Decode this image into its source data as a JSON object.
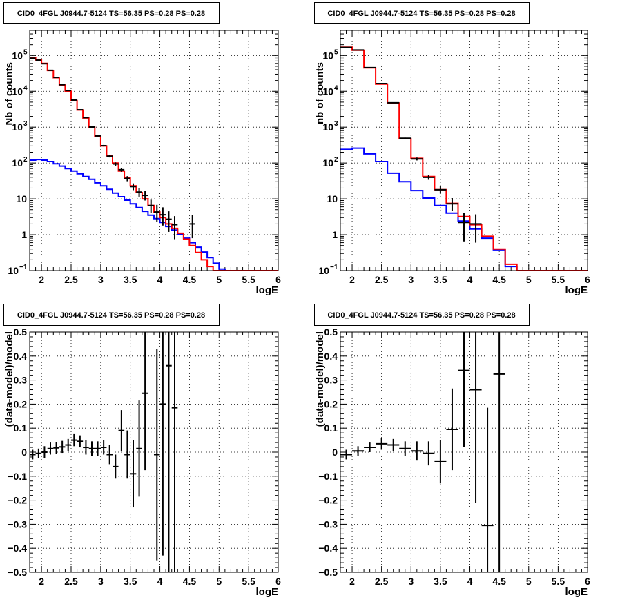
{
  "chart_data": [
    {
      "type": "histogram",
      "title": "CID0_4FGL J0944.7-5124 TS=56.35 PS=0.28 PS=0.28",
      "xlabel": "logE",
      "ylabel": "Nb of counts",
      "log_y": true,
      "grid": true,
      "xlim": [
        1.8,
        6.0
      ],
      "ylim": [
        0.1,
        500000
      ],
      "xticks": [
        2,
        2.5,
        3,
        3.5,
        4,
        4.5,
        5,
        5.5,
        6
      ],
      "xtick_labels": [
        "2",
        "2.5",
        "3",
        "3.5",
        "4",
        "4.5",
        "5",
        "5.5",
        "6"
      ],
      "yticks": [
        0.1,
        1,
        10,
        100,
        1000,
        10000,
        100000
      ],
      "ytick_labels": [
        "10^-1",
        "1",
        "10",
        "10^2",
        "10^3",
        "10^4",
        "10^5"
      ],
      "bin_width": 0.1,
      "bin_edges_start": 1.8,
      "model_total_color": "#ff0000",
      "model_source_color": "#0000ff",
      "data_color": "#000000",
      "model_total": [
        85000,
        75000,
        60000,
        38000,
        24000,
        15000,
        10000,
        5500,
        3000,
        1800,
        1000,
        560,
        300,
        160,
        100,
        60,
        38,
        23,
        15,
        10,
        6.5,
        4.3,
        3,
        2,
        1.5,
        1.1,
        0.75,
        0.5,
        0.32,
        0.2,
        0.13,
        0.1,
        0.1,
        0.1,
        0.1,
        0.1,
        0.1,
        0.1,
        0.1,
        0.1,
        0.1,
        0.1
      ],
      "model_source": [
        120,
        125,
        120,
        110,
        95,
        82,
        70,
        60,
        50,
        42,
        35,
        28,
        23,
        18.5,
        14.5,
        11.5,
        9.2,
        7.3,
        5.7,
        4.5,
        3.5,
        2.8,
        2.2,
        1.7,
        1.35,
        1.05,
        0.8,
        0.6,
        0.45,
        0.33,
        0.23,
        0.16,
        0.11,
        0.1,
        0.1,
        0.1,
        0.1,
        0.1,
        0.1,
        0.1,
        0.1,
        0.1
      ],
      "data_points": [
        {
          "x": 1.85,
          "y": 84000,
          "ylo": 83700,
          "yhi": 84300
        },
        {
          "x": 1.95,
          "y": 74000,
          "ylo": 73700,
          "yhi": 74300
        },
        {
          "x": 2.05,
          "y": 59000,
          "ylo": 58700,
          "yhi": 59300
        },
        {
          "x": 2.15,
          "y": 38500,
          "ylo": 38200,
          "yhi": 38800
        },
        {
          "x": 2.25,
          "y": 24500,
          "ylo": 24300,
          "yhi": 24700
        },
        {
          "x": 2.35,
          "y": 15300,
          "ylo": 15100,
          "yhi": 15500
        },
        {
          "x": 2.45,
          "y": 10500,
          "ylo": 10300,
          "yhi": 10700
        },
        {
          "x": 2.55,
          "y": 5700,
          "ylo": 5600,
          "yhi": 5800
        },
        {
          "x": 2.65,
          "y": 3050,
          "ylo": 2990,
          "yhi": 3110
        },
        {
          "x": 2.75,
          "y": 1850,
          "ylo": 1800,
          "yhi": 1900
        },
        {
          "x": 2.85,
          "y": 1010,
          "ylo": 980,
          "yhi": 1040
        },
        {
          "x": 2.95,
          "y": 570,
          "ylo": 550,
          "yhi": 590
        },
        {
          "x": 3.05,
          "y": 305,
          "ylo": 290,
          "yhi": 320
        },
        {
          "x": 3.15,
          "y": 155,
          "ylo": 143,
          "yhi": 167
        },
        {
          "x": 3.25,
          "y": 94,
          "ylo": 84,
          "yhi": 104
        },
        {
          "x": 3.35,
          "y": 65,
          "ylo": 57,
          "yhi": 73
        },
        {
          "x": 3.45,
          "y": 37,
          "ylo": 31,
          "yhi": 43
        },
        {
          "x": 3.55,
          "y": 22,
          "ylo": 17.5,
          "yhi": 27
        },
        {
          "x": 3.65,
          "y": 15.5,
          "ylo": 11.5,
          "yhi": 20
        },
        {
          "x": 3.75,
          "y": 12.5,
          "ylo": 9,
          "yhi": 16.5
        },
        {
          "x": 3.85,
          "y": 6.5,
          "ylo": 4,
          "yhi": 9.5
        },
        {
          "x": 3.95,
          "y": 4.3,
          "ylo": 2.3,
          "yhi": 6.8
        },
        {
          "x": 4.05,
          "y": 3.6,
          "ylo": 1.8,
          "yhi": 5.8
        },
        {
          "x": 4.15,
          "y": 2.7,
          "ylo": 1.2,
          "yhi": 4.5
        },
        {
          "x": 4.25,
          "y": 1.9,
          "ylo": 0.75,
          "yhi": 3.3
        },
        {
          "x": 4.55,
          "y": 2.0,
          "ylo": 0.8,
          "yhi": 3.5
        }
      ]
    },
    {
      "type": "histogram",
      "title": "CID0_4FGL J0944.7-5124 TS=56.35 PS=0.28 PS=0.28",
      "xlabel": "logE",
      "ylabel": "nb of counts",
      "log_y": true,
      "grid": true,
      "xlim": [
        1.8,
        6.0
      ],
      "ylim": [
        0.1,
        500000
      ],
      "xticks": [
        2,
        2.5,
        3,
        3.5,
        4,
        4.5,
        5,
        5.5,
        6
      ],
      "xtick_labels": [
        "2",
        "2.5",
        "3",
        "3.5",
        "4",
        "4.5",
        "5",
        "5.5",
        "6"
      ],
      "yticks": [
        0.1,
        1,
        10,
        100,
        1000,
        10000,
        100000
      ],
      "ytick_labels": [
        "10^-1",
        "1",
        "10",
        "10^2",
        "10^3",
        "10^4",
        "10^5"
      ],
      "bin_width": 0.2,
      "bin_edges_start": 1.8,
      "model_total_color": "#ff0000",
      "model_source_color": "#0000ff",
      "data_color": "#000000",
      "model_total": [
        170000,
        140000,
        45000,
        16000,
        4700,
        480,
        135,
        42,
        18,
        7.5,
        3.2,
        1.9,
        0.9,
        0.4,
        0.15,
        0.1,
        0.1,
        0.1,
        0.1,
        0.1,
        0.1
      ],
      "model_source": [
        240,
        260,
        180,
        110,
        52,
        30,
        17,
        10.5,
        6.5,
        4.0,
        2.4,
        1.45,
        0.8,
        0.38,
        0.13,
        0.1,
        0.1,
        0.1,
        0.1,
        0.1,
        0.1
      ],
      "data_points": [
        {
          "x": 1.9,
          "y": 168000,
          "ylo": 167500,
          "yhi": 168500
        },
        {
          "x": 2.1,
          "y": 142000,
          "ylo": 141500,
          "yhi": 142500
        },
        {
          "x": 2.3,
          "y": 46000,
          "ylo": 45700,
          "yhi": 46300
        },
        {
          "x": 2.5,
          "y": 16500,
          "ylo": 16300,
          "yhi": 16700
        },
        {
          "x": 2.7,
          "y": 4800,
          "ylo": 4700,
          "yhi": 4900
        },
        {
          "x": 2.9,
          "y": 490,
          "ylo": 470,
          "yhi": 510
        },
        {
          "x": 3.1,
          "y": 130,
          "ylo": 118,
          "yhi": 142
        },
        {
          "x": 3.3,
          "y": 40,
          "ylo": 34,
          "yhi": 46
        },
        {
          "x": 3.5,
          "y": 18,
          "ylo": 14,
          "yhi": 22.5
        },
        {
          "x": 3.7,
          "y": 7.3,
          "ylo": 4.7,
          "yhi": 10.5
        },
        {
          "x": 3.9,
          "y": 2.2,
          "ylo": 0.65,
          "yhi": 4
        },
        {
          "x": 4.1,
          "y": 2.0,
          "ylo": 0.6,
          "yhi": 3.7
        }
      ]
    },
    {
      "type": "scatter",
      "title": "CID0_4FGL J0944.7-5124 TS=56.35 PS=0.28 PS=0.28",
      "xlabel": "logE",
      "ylabel": "(data-model)/model",
      "grid": true,
      "xlim": [
        1.8,
        6.0
      ],
      "ylim": [
        -0.5,
        0.5
      ],
      "xticks": [
        2,
        2.5,
        3,
        3.5,
        4,
        4.5,
        5,
        5.5,
        6
      ],
      "xtick_labels": [
        "2",
        "2.5",
        "3",
        "3.5",
        "4",
        "4.5",
        "5",
        "5.5",
        "6"
      ],
      "yticks": [
        -0.5,
        -0.4,
        -0.3,
        -0.2,
        -0.1,
        0,
        0.1,
        0.2,
        0.3,
        0.4,
        0.5
      ],
      "ytick_labels": [
        "−0.5",
        "−0.4",
        "−0.3",
        "−0.2",
        "−0.1",
        "0",
        "0.1",
        "0.2",
        "0.3",
        "0.4",
        "0.5"
      ],
      "half_width": 0.05,
      "data_color": "#000000",
      "points": [
        {
          "x": 1.85,
          "y": -0.01,
          "err": 0.02
        },
        {
          "x": 1.95,
          "y": -0.005,
          "err": 0.02
        },
        {
          "x": 2.05,
          "y": 0.0,
          "err": 0.025
        },
        {
          "x": 2.15,
          "y": 0.015,
          "err": 0.025
        },
        {
          "x": 2.25,
          "y": 0.018,
          "err": 0.025
        },
        {
          "x": 2.35,
          "y": 0.022,
          "err": 0.025
        },
        {
          "x": 2.45,
          "y": 0.03,
          "err": 0.025
        },
        {
          "x": 2.55,
          "y": 0.05,
          "err": 0.025
        },
        {
          "x": 2.65,
          "y": 0.045,
          "err": 0.025
        },
        {
          "x": 2.75,
          "y": 0.02,
          "err": 0.03
        },
        {
          "x": 2.85,
          "y": 0.015,
          "err": 0.03
        },
        {
          "x": 2.95,
          "y": 0.015,
          "err": 0.03
        },
        {
          "x": 3.05,
          "y": 0.02,
          "err": 0.03
        },
        {
          "x": 3.15,
          "y": -0.01,
          "err": 0.04
        },
        {
          "x": 3.25,
          "y": -0.06,
          "err": 0.05
        },
        {
          "x": 3.35,
          "y": 0.09,
          "err": 0.085
        },
        {
          "x": 3.45,
          "y": -0.01,
          "err": 0.1
        },
        {
          "x": 3.55,
          "y": -0.09,
          "err": 0.14
        },
        {
          "x": 3.65,
          "y": 0.015,
          "err": 0.2
        },
        {
          "x": 3.75,
          "y": 0.245,
          "err": 0.32
        },
        {
          "x": 3.95,
          "y": -0.01,
          "err": 0.44
        },
        {
          "x": 4.05,
          "y": 0.2,
          "err": 0.63
        },
        {
          "x": 4.15,
          "y": 0.36,
          "err": 0.87
        },
        {
          "x": 4.25,
          "y": 0.185,
          "err": 1.1
        }
      ]
    },
    {
      "type": "scatter",
      "title": "CID0_4FGL J0944.7-5124 TS=56.35 PS=0.28 PS=0.28",
      "xlabel": "logE",
      "ylabel": "(data-model)/model",
      "grid": true,
      "xlim": [
        1.8,
        6.0
      ],
      "ylim": [
        -0.5,
        0.5
      ],
      "xticks": [
        2,
        2.5,
        3,
        3.5,
        4,
        4.5,
        5,
        5.5,
        6
      ],
      "xtick_labels": [
        "2",
        "2.5",
        "3",
        "3.5",
        "4",
        "4.5",
        "5",
        "5.5",
        "6"
      ],
      "yticks": [
        -0.5,
        -0.4,
        -0.3,
        -0.2,
        -0.1,
        0,
        0.1,
        0.2,
        0.3,
        0.4,
        0.5
      ],
      "ytick_labels": [
        "−0.5",
        "−0.4",
        "−0.3",
        "−0.2",
        "−0.1",
        "0",
        "0.1",
        "0.2",
        "0.3",
        "0.4",
        "0.5"
      ],
      "half_width": 0.1,
      "data_color": "#000000",
      "points": [
        {
          "x": 1.9,
          "y": -0.01,
          "err": 0.02
        },
        {
          "x": 2.1,
          "y": 0.005,
          "err": 0.02
        },
        {
          "x": 2.3,
          "y": 0.02,
          "err": 0.02
        },
        {
          "x": 2.5,
          "y": 0.035,
          "err": 0.025
        },
        {
          "x": 2.7,
          "y": 0.03,
          "err": 0.025
        },
        {
          "x": 2.9,
          "y": 0.015,
          "err": 0.03
        },
        {
          "x": 3.1,
          "y": 0.005,
          "err": 0.04
        },
        {
          "x": 3.3,
          "y": -0.005,
          "err": 0.05
        },
        {
          "x": 3.5,
          "y": -0.04,
          "err": 0.09
        },
        {
          "x": 3.7,
          "y": 0.095,
          "err": 0.17
        },
        {
          "x": 3.9,
          "y": 0.34,
          "err": 0.32
        },
        {
          "x": 4.1,
          "y": 0.26,
          "err": 0.47
        },
        {
          "x": 4.3,
          "y": -0.305,
          "err": 0.49
        },
        {
          "x": 4.5,
          "y": 0.325,
          "err": 1.2
        }
      ]
    }
  ]
}
